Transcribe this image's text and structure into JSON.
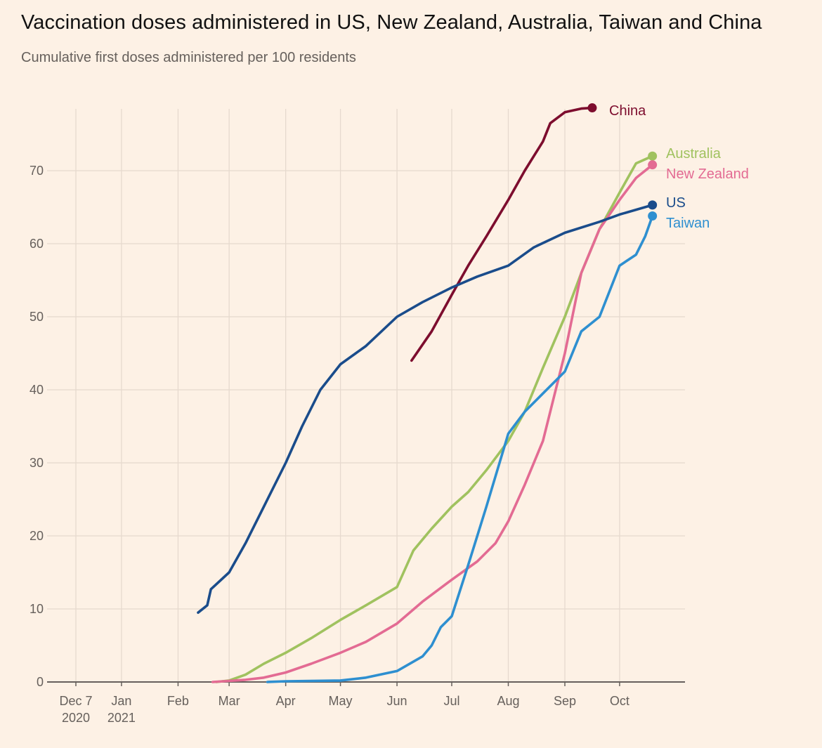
{
  "chart_data": {
    "type": "line",
    "title": "Vaccination doses administered in US, New Zealand, Australia, Taiwan and China",
    "subtitle": "Cumulative first doses administered per 100 residents",
    "ylim": [
      0,
      80
    ],
    "yticks": [
      0,
      10,
      20,
      30,
      40,
      50,
      60,
      70
    ],
    "xlim": [
      "2020-12-07",
      "2021-11-01"
    ],
    "xticks": [
      {
        "date": "2020-12-07",
        "label": [
          "Dec 7",
          "2020"
        ]
      },
      {
        "date": "2021-01-01",
        "label": [
          "Jan",
          "2021"
        ]
      },
      {
        "date": "2021-02-01",
        "label": [
          "Feb"
        ]
      },
      {
        "date": "2021-03-01",
        "label": [
          "Mar"
        ]
      },
      {
        "date": "2021-04-01",
        "label": [
          "Apr"
        ]
      },
      {
        "date": "2021-05-01",
        "label": [
          "May"
        ]
      },
      {
        "date": "2021-06-01",
        "label": [
          "Jun"
        ]
      },
      {
        "date": "2021-07-01",
        "label": [
          "Jul"
        ]
      },
      {
        "date": "2021-08-01",
        "label": [
          "Aug"
        ]
      },
      {
        "date": "2021-09-01",
        "label": [
          "Sep"
        ]
      },
      {
        "date": "2021-10-01",
        "label": [
          "Oct"
        ]
      }
    ],
    "grid": true,
    "series": [
      {
        "name": "China",
        "color": "#7d0d2e",
        "points": [
          [
            "2021-06-09",
            44
          ],
          [
            "2021-06-20",
            48
          ],
          [
            "2021-07-01",
            53
          ],
          [
            "2021-07-10",
            57
          ],
          [
            "2021-07-20",
            61
          ],
          [
            "2021-08-01",
            66
          ],
          [
            "2021-08-10",
            70
          ],
          [
            "2021-08-20",
            74
          ],
          [
            "2021-08-24",
            76.5
          ],
          [
            "2021-09-01",
            78
          ],
          [
            "2021-09-10",
            78.5
          ],
          [
            "2021-09-16",
            78.6
          ]
        ]
      },
      {
        "name": "Australia",
        "color": "#a0c25f",
        "points": [
          [
            "2021-02-22",
            0
          ],
          [
            "2021-03-01",
            0.2
          ],
          [
            "2021-03-10",
            1
          ],
          [
            "2021-03-20",
            2.5
          ],
          [
            "2021-04-01",
            4
          ],
          [
            "2021-04-15",
            6
          ],
          [
            "2021-05-01",
            8.5
          ],
          [
            "2021-05-15",
            10.5
          ],
          [
            "2021-06-01",
            13
          ],
          [
            "2021-06-10",
            18
          ],
          [
            "2021-06-20",
            21
          ],
          [
            "2021-07-01",
            24
          ],
          [
            "2021-07-10",
            26
          ],
          [
            "2021-07-20",
            29
          ],
          [
            "2021-08-01",
            33
          ],
          [
            "2021-08-10",
            37
          ],
          [
            "2021-08-20",
            43
          ],
          [
            "2021-09-01",
            50
          ],
          [
            "2021-09-10",
            56
          ],
          [
            "2021-09-20",
            62
          ],
          [
            "2021-10-01",
            67
          ],
          [
            "2021-10-10",
            71
          ],
          [
            "2021-10-19",
            72
          ]
        ]
      },
      {
        "name": "New Zealand",
        "color": "#e36b93",
        "points": [
          [
            "2021-02-20",
            0
          ],
          [
            "2021-03-10",
            0.3
          ],
          [
            "2021-03-20",
            0.6
          ],
          [
            "2021-04-01",
            1.3
          ],
          [
            "2021-04-15",
            2.5
          ],
          [
            "2021-05-01",
            4
          ],
          [
            "2021-05-15",
            5.5
          ],
          [
            "2021-06-01",
            8
          ],
          [
            "2021-06-15",
            11
          ],
          [
            "2021-07-01",
            14
          ],
          [
            "2021-07-15",
            16.5
          ],
          [
            "2021-07-25",
            19
          ],
          [
            "2021-08-01",
            22
          ],
          [
            "2021-08-10",
            27
          ],
          [
            "2021-08-20",
            33
          ],
          [
            "2021-09-01",
            45
          ],
          [
            "2021-09-10",
            56
          ],
          [
            "2021-09-20",
            62
          ],
          [
            "2021-10-01",
            66
          ],
          [
            "2021-10-10",
            69
          ],
          [
            "2021-10-19",
            70.8
          ]
        ]
      },
      {
        "name": "US",
        "color": "#1a4c8b",
        "points": [
          [
            "2021-02-12",
            9.5
          ],
          [
            "2021-02-17",
            10.5
          ],
          [
            "2021-02-19",
            12.7
          ],
          [
            "2021-03-01",
            15
          ],
          [
            "2021-03-10",
            19
          ],
          [
            "2021-03-20",
            24
          ],
          [
            "2021-04-01",
            30
          ],
          [
            "2021-04-10",
            35
          ],
          [
            "2021-04-20",
            40
          ],
          [
            "2021-05-01",
            43.5
          ],
          [
            "2021-05-15",
            46
          ],
          [
            "2021-06-01",
            50
          ],
          [
            "2021-06-15",
            52
          ],
          [
            "2021-07-01",
            54
          ],
          [
            "2021-07-15",
            55.5
          ],
          [
            "2021-08-01",
            57
          ],
          [
            "2021-08-15",
            59.5
          ],
          [
            "2021-09-01",
            61.5
          ],
          [
            "2021-09-20",
            63
          ],
          [
            "2021-10-01",
            64
          ],
          [
            "2021-10-19",
            65.3
          ]
        ]
      },
      {
        "name": "Taiwan",
        "color": "#2e8fd0",
        "points": [
          [
            "2021-03-22",
            0
          ],
          [
            "2021-04-01",
            0.1
          ],
          [
            "2021-05-01",
            0.2
          ],
          [
            "2021-05-15",
            0.6
          ],
          [
            "2021-06-01",
            1.5
          ],
          [
            "2021-06-15",
            3.5
          ],
          [
            "2021-06-20",
            5
          ],
          [
            "2021-06-25",
            7.5
          ],
          [
            "2021-07-01",
            9
          ],
          [
            "2021-07-10",
            16
          ],
          [
            "2021-07-20",
            24
          ],
          [
            "2021-08-01",
            34
          ],
          [
            "2021-08-10",
            37
          ],
          [
            "2021-08-20",
            39.5
          ],
          [
            "2021-09-01",
            42.5
          ],
          [
            "2021-09-10",
            48
          ],
          [
            "2021-09-20",
            50
          ],
          [
            "2021-10-01",
            57
          ],
          [
            "2021-10-10",
            58.5
          ],
          [
            "2021-10-15",
            61
          ],
          [
            "2021-10-19",
            63.8
          ]
        ]
      }
    ],
    "end_labels": [
      {
        "name": "China",
        "text": "China",
        "color": "#7d0d2e"
      },
      {
        "name": "Australia",
        "text": "Australia",
        "color": "#a0c25f"
      },
      {
        "name": "New Zealand",
        "text": "New Zealand",
        "color": "#e36b93"
      },
      {
        "name": "US",
        "text": "US",
        "color": "#1a4c8b"
      },
      {
        "name": "Taiwan",
        "text": "Taiwan",
        "color": "#2e8fd0"
      }
    ]
  }
}
